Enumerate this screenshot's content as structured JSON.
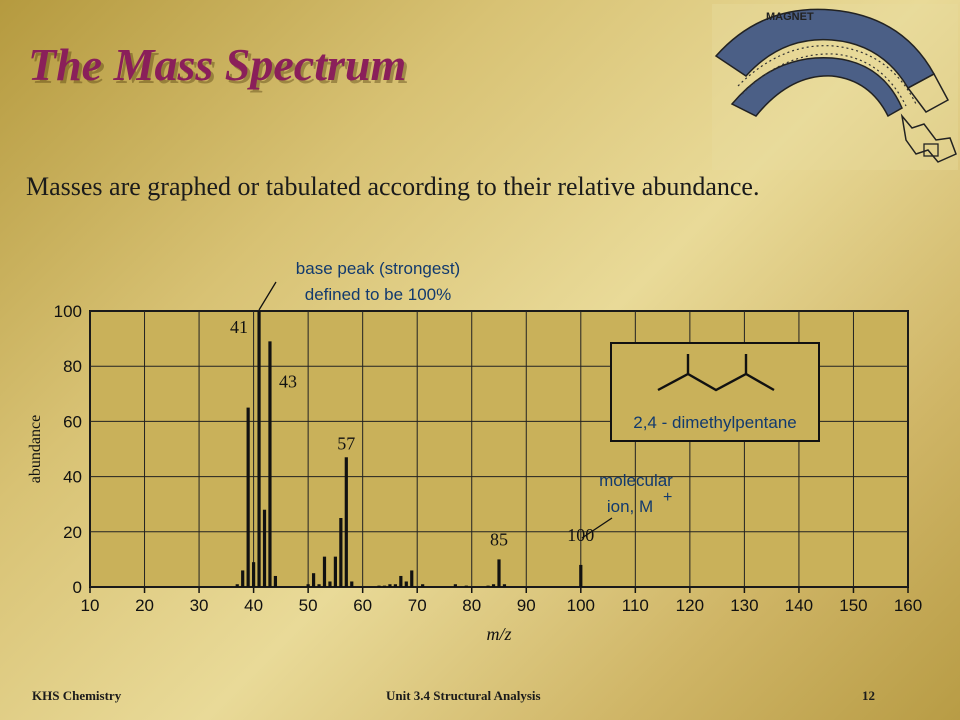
{
  "slide": {
    "title": "The Mass Spectrum",
    "subtitle": "Masses are graphed or tabulated according to their relative abundance.",
    "magnet_label": "MAGNET"
  },
  "footer": {
    "left": "KHS Chemistry",
    "center": "Unit 3.4 Structural Analysis",
    "page": "12"
  },
  "colors": {
    "title": "#8a1f5a",
    "plot_background": "#c9b15a",
    "bars": "#111111",
    "magnet": "#4b5f86"
  },
  "chart_data": {
    "type": "bar",
    "xlabel": "m/z",
    "ylabel": "abundance",
    "xlim": [
      10,
      160
    ],
    "ylim": [
      0,
      100
    ],
    "xticks": [
      10,
      20,
      30,
      40,
      50,
      60,
      70,
      80,
      90,
      100,
      110,
      120,
      130,
      140,
      150,
      160
    ],
    "yticks": [
      0,
      20,
      40,
      60,
      80,
      100
    ],
    "grid": true,
    "bars": [
      {
        "x": 37,
        "y": 1
      },
      {
        "x": 38,
        "y": 6
      },
      {
        "x": 39,
        "y": 65
      },
      {
        "x": 40,
        "y": 9
      },
      {
        "x": 41,
        "y": 100
      },
      {
        "x": 42,
        "y": 28
      },
      {
        "x": 43,
        "y": 89
      },
      {
        "x": 44,
        "y": 4
      },
      {
        "x": 50,
        "y": 1
      },
      {
        "x": 51,
        "y": 5
      },
      {
        "x": 52,
        "y": 1
      },
      {
        "x": 53,
        "y": 11
      },
      {
        "x": 54,
        "y": 2
      },
      {
        "x": 55,
        "y": 11
      },
      {
        "x": 56,
        "y": 25
      },
      {
        "x": 57,
        "y": 47
      },
      {
        "x": 58,
        "y": 2
      },
      {
        "x": 63,
        "y": 0.5
      },
      {
        "x": 64,
        "y": 0.5
      },
      {
        "x": 65,
        "y": 1
      },
      {
        "x": 66,
        "y": 1
      },
      {
        "x": 67,
        "y": 4
      },
      {
        "x": 68,
        "y": 2
      },
      {
        "x": 69,
        "y": 6
      },
      {
        "x": 71,
        "y": 1
      },
      {
        "x": 77,
        "y": 1
      },
      {
        "x": 79,
        "y": 0.5
      },
      {
        "x": 83,
        "y": 0.5
      },
      {
        "x": 84,
        "y": 1
      },
      {
        "x": 85,
        "y": 10
      },
      {
        "x": 86,
        "y": 1
      },
      {
        "x": 100,
        "y": 8
      }
    ],
    "peak_labels": [
      {
        "x": 41,
        "y": 100,
        "label": "41"
      },
      {
        "x": 43,
        "y": 89,
        "label": "43"
      },
      {
        "x": 57,
        "y": 47,
        "label": "57"
      },
      {
        "x": 85,
        "y": 10,
        "label": "85"
      },
      {
        "x": 100,
        "y": 8,
        "label": "100"
      }
    ],
    "annotations": {
      "base_peak": [
        "base peak (strongest)",
        "defined to be 100%"
      ],
      "molecular_ion": [
        "molecular",
        "ion, M"
      ],
      "molecular_ion_sup": "+",
      "structure": "2,4 - dimethylpentane"
    }
  }
}
